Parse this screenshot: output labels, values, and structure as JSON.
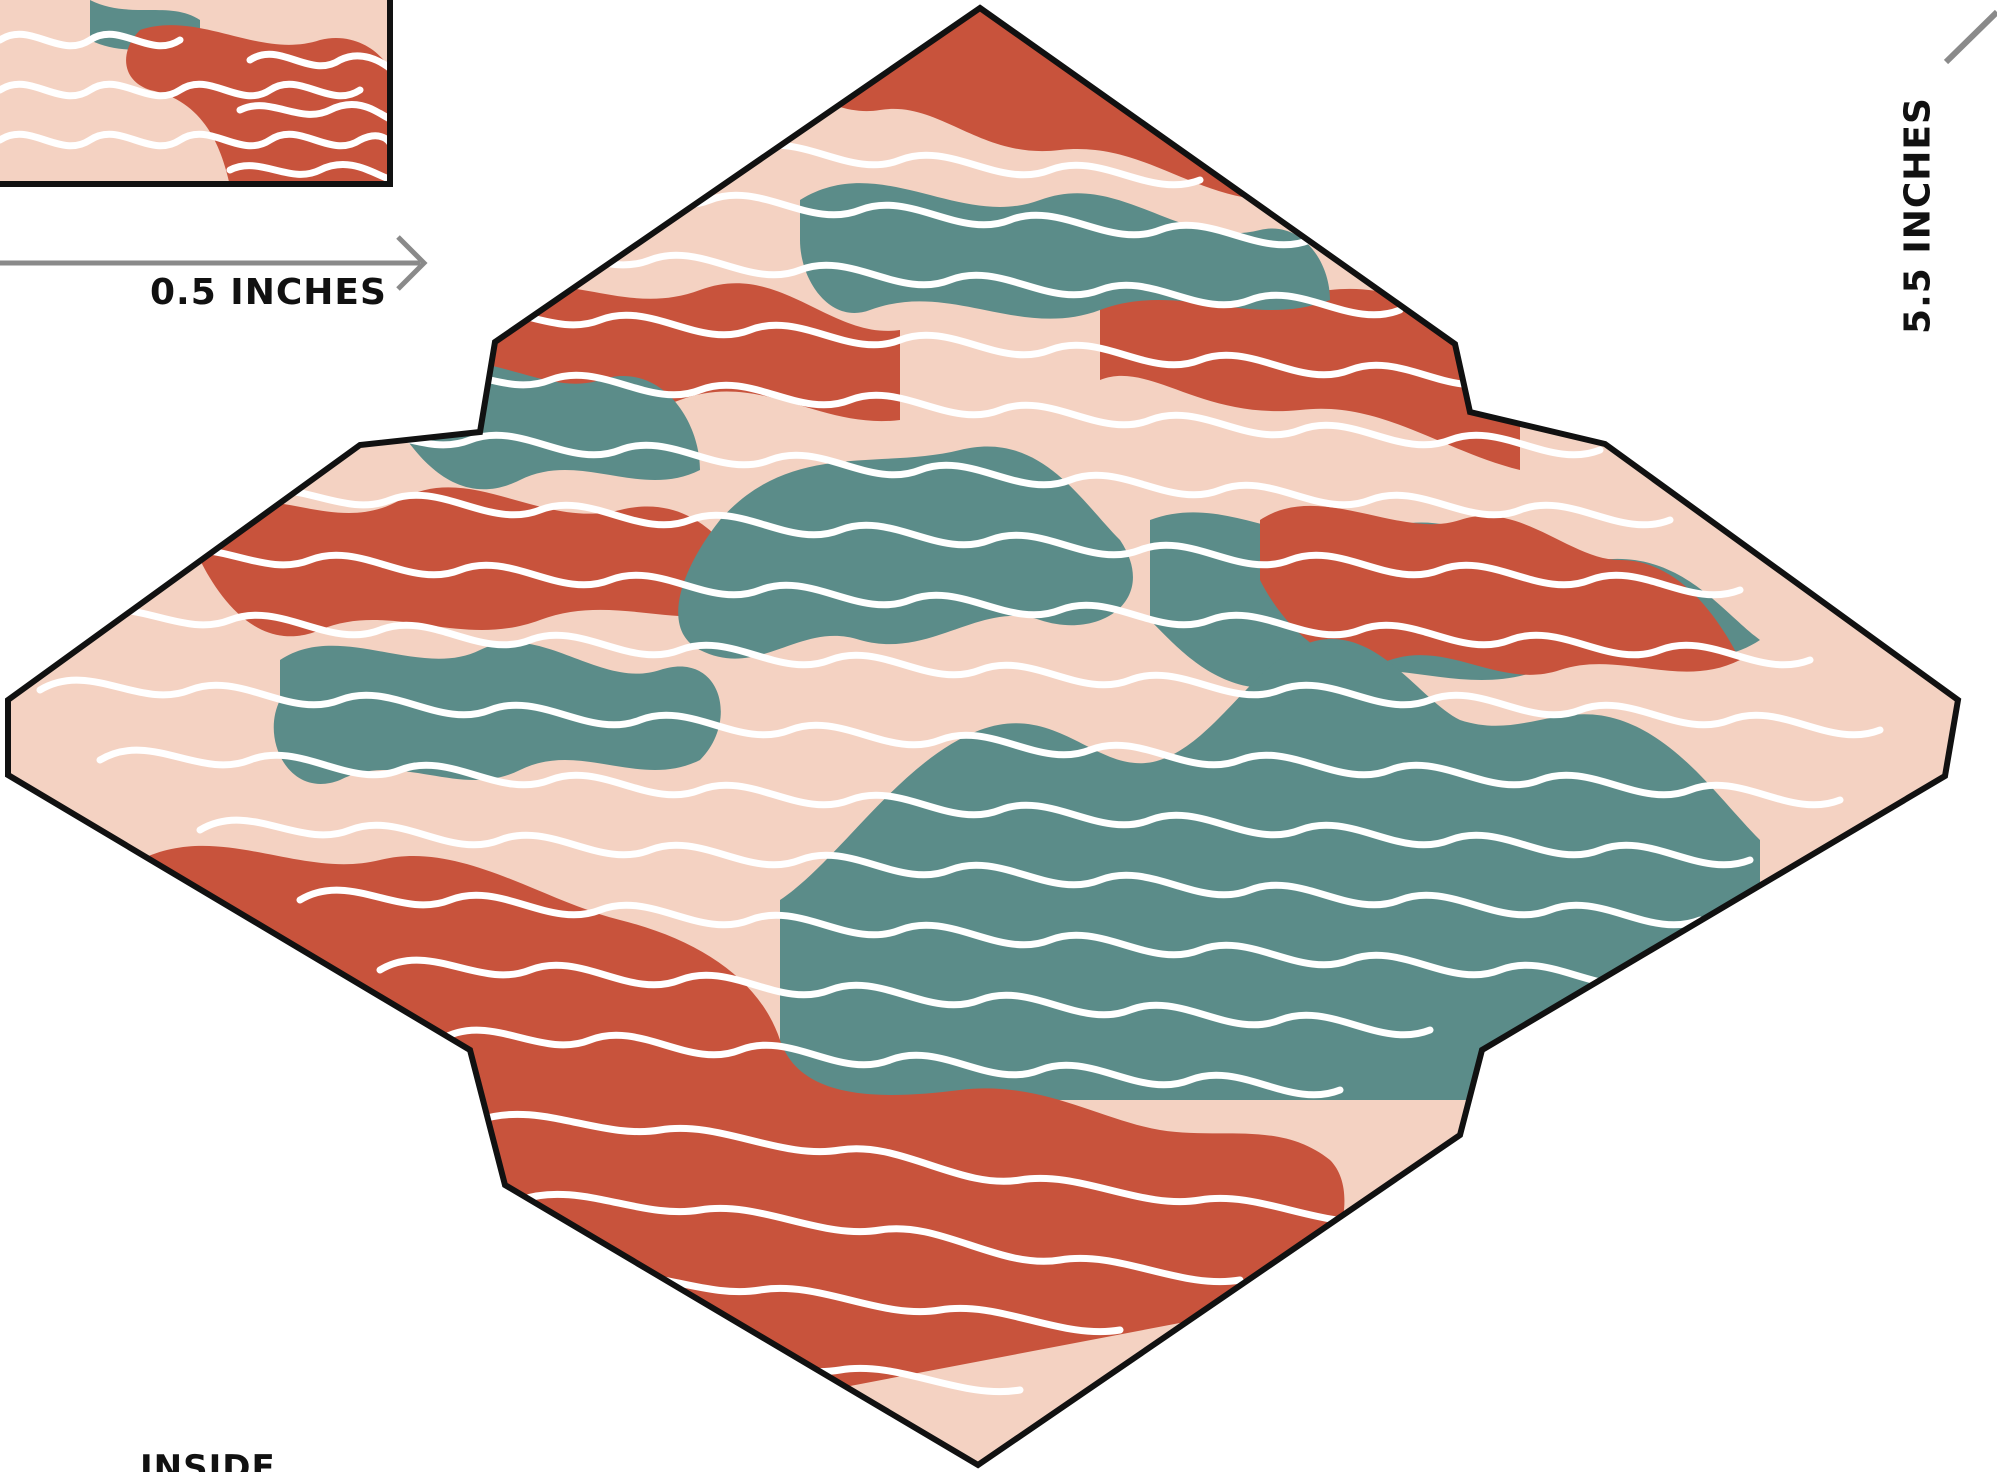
{
  "labels": {
    "horizontal_measure": "0.5 INCHES",
    "vertical_measure": "5.5 INCHES",
    "inside": "INSIDE"
  },
  "colors": {
    "rust": "#C8533C",
    "teal": "#5B8C89",
    "blush": "#F4D2C2",
    "white": "#FFFFFF",
    "outline": "#111111",
    "arrow": "#8A8A8A"
  }
}
